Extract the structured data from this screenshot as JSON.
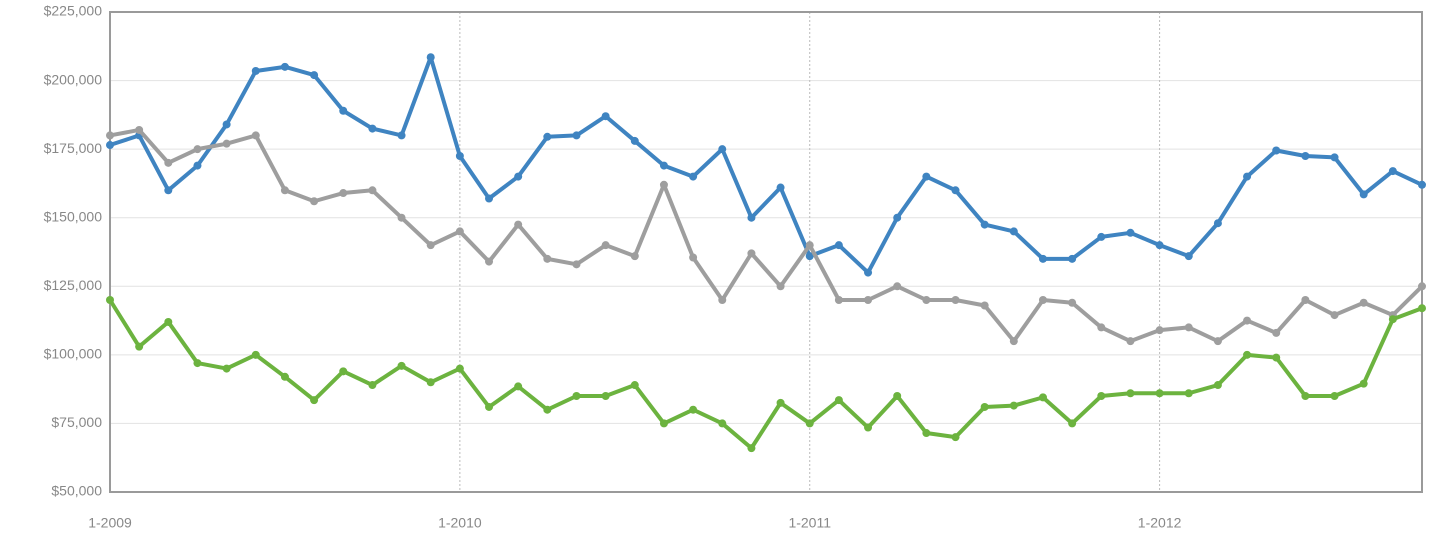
{
  "chart_data": {
    "type": "line",
    "categories": [
      "1-2009",
      null,
      null,
      null,
      null,
      null,
      null,
      null,
      null,
      null,
      null,
      null,
      "1-2010",
      null,
      null,
      null,
      null,
      null,
      null,
      null,
      null,
      null,
      null,
      null,
      "1-2011",
      null,
      null,
      null,
      null,
      null,
      null,
      null,
      null,
      null,
      null,
      null,
      "1-2012",
      null,
      null,
      null,
      null,
      null,
      null,
      null,
      null,
      null
    ],
    "series": [
      {
        "color": "#3f84c1",
        "values": [
          176500,
          180000,
          160000,
          169000,
          184000,
          203500,
          205000,
          202000,
          189000,
          182500,
          180000,
          208500,
          172500,
          157000,
          165000,
          179500,
          180000,
          187000,
          178000,
          169000,
          165000,
          175000,
          150000,
          161000,
          136000,
          140000,
          130000,
          150000,
          165000,
          160000,
          147500,
          145000,
          135000,
          135000,
          143000,
          144500,
          140000,
          136000,
          148000,
          165000,
          174500,
          172500,
          172000,
          158500,
          167000,
          162000
        ]
      },
      {
        "color": "#9e9e9e",
        "values": [
          180000,
          182000,
          170000,
          175000,
          177000,
          180000,
          160000,
          156000,
          159000,
          160000,
          150000,
          140000,
          145000,
          134000,
          147500,
          135000,
          133000,
          140000,
          136000,
          162000,
          135500,
          120000,
          137000,
          125000,
          140000,
          120000,
          120000,
          125000,
          120000,
          120000,
          118000,
          105000,
          120000,
          119000,
          110000,
          105000,
          109000,
          110000,
          105000,
          112500,
          108000,
          120000,
          114500,
          119000,
          114500,
          125000
        ]
      },
      {
        "color": "#6cb33f",
        "values": [
          120000,
          103000,
          112000,
          97000,
          95000,
          100000,
          92000,
          83500,
          94000,
          89000,
          96000,
          90000,
          95000,
          81000,
          88500,
          80000,
          85000,
          85000,
          89000,
          75000,
          80000,
          75000,
          66000,
          82500,
          75000,
          83500,
          73500,
          85000,
          71500,
          70000,
          81000,
          81500,
          84500,
          75000,
          85000,
          86000,
          86000,
          86000,
          89000,
          100000,
          99000,
          85000,
          85000,
          89500,
          113000,
          117000
        ]
      }
    ],
    "ylim": [
      50000,
      225000
    ],
    "yticks": [
      {
        "value": 50000,
        "label": "$50,000"
      },
      {
        "value": 75000,
        "label": "$75,000"
      },
      {
        "value": 100000,
        "label": "$100,000"
      },
      {
        "value": 125000,
        "label": "$125,000"
      },
      {
        "value": 150000,
        "label": "$150,000"
      },
      {
        "value": 175000,
        "label": "$175,000"
      },
      {
        "value": 200000,
        "label": "$200,000"
      },
      {
        "value": 225000,
        "label": "$225,000"
      }
    ],
    "grid": true
  }
}
